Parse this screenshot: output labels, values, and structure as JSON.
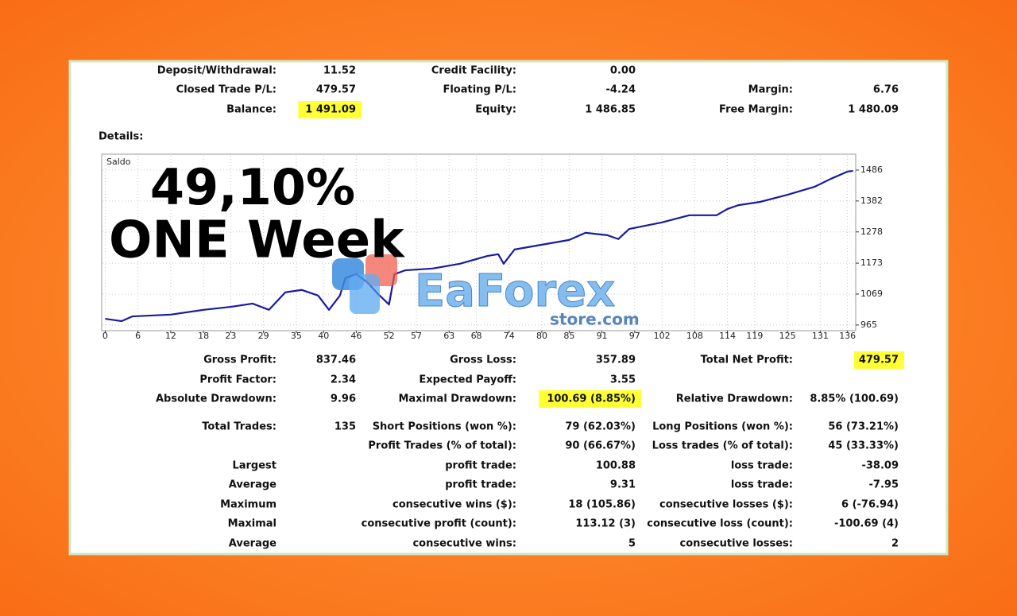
{
  "summary": [
    [
      [
        "Deposit/Withdrawal:",
        "11.52"
      ],
      [
        "Credit Facility:",
        "0.00"
      ]
    ],
    [
      [
        "Closed Trade P/L:",
        "479.57"
      ],
      [
        "Floating P/L:",
        "-4.24"
      ],
      [
        "Margin:",
        "6.76"
      ]
    ],
    [
      [
        "Balance:",
        "1 491.09"
      ],
      [
        "Equity:",
        "1 486.85"
      ],
      [
        "Free Margin:",
        "1 480.09"
      ]
    ]
  ],
  "details_label": "Details:",
  "overlay": {
    "headline": "49,10%",
    "subline": "ONE Week",
    "watermark": "EaForex",
    "watermark_site": "store.com"
  },
  "chart_data": {
    "type": "line",
    "chart_label": "Saldo",
    "x": [
      0,
      3,
      5,
      12,
      18,
      23,
      27,
      30,
      33,
      36,
      39,
      41,
      43,
      44,
      46,
      48,
      50,
      52,
      53,
      55,
      60,
      65,
      70,
      72,
      73,
      75,
      80,
      85,
      88,
      92,
      94,
      96,
      102,
      107,
      112,
      114,
      116,
      120,
      125,
      130,
      133,
      136,
      137
    ],
    "series": [
      {
        "color": "#1a1aa0",
        "values": [
          986,
          978,
          994,
          1000,
          1016,
          1026,
          1037,
          1016,
          1075,
          1083,
          1064,
          1016,
          1064,
          1123,
          1136,
          1109,
          1069,
          1034,
          1136,
          1149,
          1155,
          1171,
          1197,
          1203,
          1171,
          1219,
          1235,
          1251,
          1275,
          1267,
          1254,
          1288,
          1310,
          1334,
          1334,
          1355,
          1368,
          1379,
          1403,
          1430,
          1457,
          1481,
          1483
        ]
      }
    ],
    "xlim": [
      -0.5,
      137.5
    ],
    "ylim": [
      946,
      1534
    ],
    "xticks": [
      0,
      6,
      12,
      18,
      23,
      29,
      35,
      40,
      46,
      52,
      57,
      63,
      68,
      74,
      80,
      85,
      91,
      97,
      102,
      108,
      114,
      119,
      125,
      131,
      136
    ],
    "yticks": [
      965,
      1069,
      1173,
      1278,
      1382,
      1486
    ],
    "grid": true
  },
  "stats": [
    [
      [
        "Gross Profit:",
        "837.46"
      ],
      [
        "Gross Loss:",
        "357.89"
      ],
      [
        "Total Net Profit:",
        "479.57"
      ]
    ],
    [
      [
        "Profit Factor:",
        "2.34"
      ],
      [
        "Expected Payoff:",
        "3.55"
      ],
      null
    ],
    [
      [
        "Absolute Drawdown:",
        "9.96"
      ],
      [
        "Maximal Drawdown:",
        "100.69 (8.85%)"
      ],
      [
        "Relative Drawdown:",
        "8.85% (100.69)"
      ]
    ],
    [
      [
        "Total Trades:",
        "135"
      ],
      [
        "Short Positions (won %):",
        "79 (62.03%)"
      ],
      [
        "Long Positions (won %):",
        "56 (73.21%)"
      ]
    ],
    [
      null,
      [
        "Profit Trades (% of total):",
        "90 (66.67%)"
      ],
      [
        "Loss trades (% of total):",
        "45 (33.33%)"
      ]
    ],
    [
      [
        "Largest"
      ],
      [
        "profit trade:",
        "100.88"
      ],
      [
        "loss trade:",
        "-38.09"
      ]
    ],
    [
      [
        "Average"
      ],
      [
        "profit trade:",
        "9.31"
      ],
      [
        "loss trade:",
        "-7.95"
      ]
    ],
    [
      [
        "Maximum"
      ],
      [
        "consecutive wins ($):",
        "18 (105.86)"
      ],
      [
        "consecutive losses ($):",
        "6 (-76.94)"
      ]
    ],
    [
      [
        "Maximal"
      ],
      [
        "consecutive profit (count):",
        "113.12 (3)"
      ],
      [
        "consecutive loss (count):",
        "-100.69 (4)"
      ]
    ],
    [
      [
        "Average"
      ],
      [
        "consecutive wins:",
        "5"
      ],
      [
        "consecutive losses:",
        "2"
      ]
    ]
  ]
}
